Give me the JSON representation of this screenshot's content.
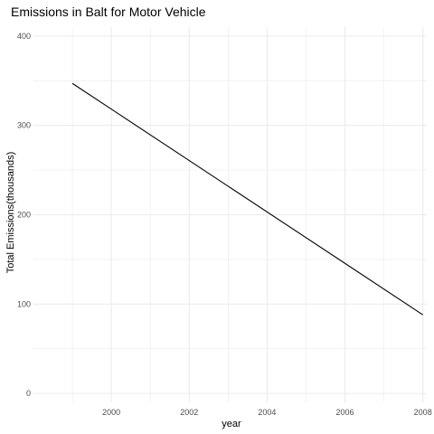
{
  "chart_data": {
    "type": "line",
    "title": "Emissions in Balt for Motor Vehicle",
    "xlabel": "year",
    "ylabel": "Total Emissions(thousands)",
    "x": [
      1999,
      2008
    ],
    "series": [
      {
        "values": [
          347,
          88
        ]
      }
    ],
    "xlim": [
      1998.0,
      2008.1
    ],
    "ylim": [
      -10,
      410
    ],
    "xticks": [
      2000,
      2002,
      2004,
      2006,
      2008
    ],
    "xtick_labels": [
      "2000",
      "2002",
      "2004",
      "2006",
      "2008"
    ],
    "yticks": [
      0,
      100,
      200,
      300,
      400
    ],
    "ytick_labels": [
      "0",
      "100",
      "200",
      "300",
      "400"
    ],
    "grid": true,
    "legend": "none",
    "colors": {
      "line": "#000000",
      "grid": "#ebebeb",
      "background": "#ffffff"
    }
  }
}
